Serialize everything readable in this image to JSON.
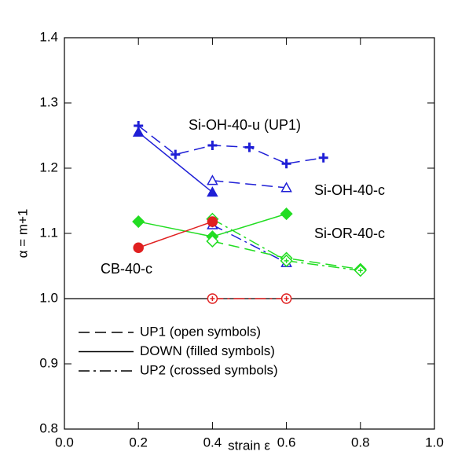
{
  "chart_data": {
    "type": "line",
    "xlabel": "strain ε",
    "ylabel": "α = m+1",
    "xlim": [
      0,
      1
    ],
    "ylim": [
      0.8,
      1.4
    ],
    "xticks": [
      {
        "value": 0,
        "label": "0.0"
      },
      0.2,
      0.4,
      0.6,
      0.8,
      {
        "value": 1,
        "label": "1.0"
      }
    ],
    "yticks": [
      0.8,
      0.9,
      {
        "value": 1,
        "label": "1.0"
      },
      1.1,
      1.2,
      1.3,
      1.4
    ],
    "reference_line": 1,
    "series": [
      {
        "color": "#1f1fd6",
        "dash": "dashed",
        "marker": "plus",
        "fill": "filled",
        "x": [
          0.2,
          0.3,
          0.4,
          0.5,
          0.6,
          0.7
        ],
        "values": [
          1.265,
          1.221,
          1.235,
          1.232,
          1.207,
          1.216
        ]
      },
      {
        "color": "#1f1fd6",
        "dash": "solid",
        "marker": "triangle",
        "fill": "filled",
        "x": [
          0.2,
          0.4
        ],
        "values": [
          1.255,
          1.163
        ]
      },
      {
        "color": "#1f1fd6",
        "dash": "dashed",
        "marker": "triangle",
        "fill": "open",
        "x": [
          0.4,
          0.6
        ],
        "values": [
          1.181,
          1.17
        ]
      },
      {
        "color": "#1f1fd6",
        "dash": "dashdot",
        "marker": "triangle",
        "fill": "crossed",
        "x": [
          0.4,
          0.6
        ],
        "values": [
          1.113,
          1.055
        ]
      },
      {
        "color": "#22dd22",
        "dash": "solid",
        "marker": "diamond",
        "fill": "filled",
        "x": [
          0.2,
          0.4,
          0.6
        ],
        "values": [
          1.118,
          1.095,
          1.13
        ]
      },
      {
        "color": "#22dd22",
        "dash": "dashed",
        "marker": "diamond",
        "fill": "open",
        "x": [
          0.4,
          0.6,
          0.8
        ],
        "values": [
          1.088,
          1.062,
          1.045
        ]
      },
      {
        "color": "#22dd22",
        "dash": "dashdot",
        "marker": "diamond",
        "fill": "crossed",
        "x": [
          0.4,
          0.6,
          0.8
        ],
        "values": [
          1.122,
          1.058,
          1.043
        ]
      },
      {
        "color": "#e02020",
        "dash": "solid",
        "marker": "circle",
        "fill": "filled",
        "x": [
          0.2,
          0.4
        ],
        "values": [
          1.078,
          1.118
        ]
      },
      {
        "color": "#e02020",
        "dash": "dashdot",
        "marker": "circle",
        "fill": "crossed",
        "x": [
          0.4,
          0.6
        ],
        "values": [
          1,
          1
        ]
      }
    ],
    "annotations": [
      {
        "text": "Si-OH-40-u (UP1)",
        "color": "#1f1fd6"
      },
      {
        "text": "Si-OH-40-c",
        "color": "#1f1fd6"
      },
      {
        "text": "Si-OR-40-c",
        "color": "#22dd22"
      },
      {
        "text": "CB-40-c",
        "color": "#e02020"
      }
    ],
    "legend": [
      {
        "label": "UP1 (open symbols)",
        "dash": "dashed"
      },
      {
        "label": "DOWN (filled symbols)",
        "dash": "solid"
      },
      {
        "label": "UP2 (crossed symbols)",
        "dash": "dashdot"
      }
    ]
  }
}
